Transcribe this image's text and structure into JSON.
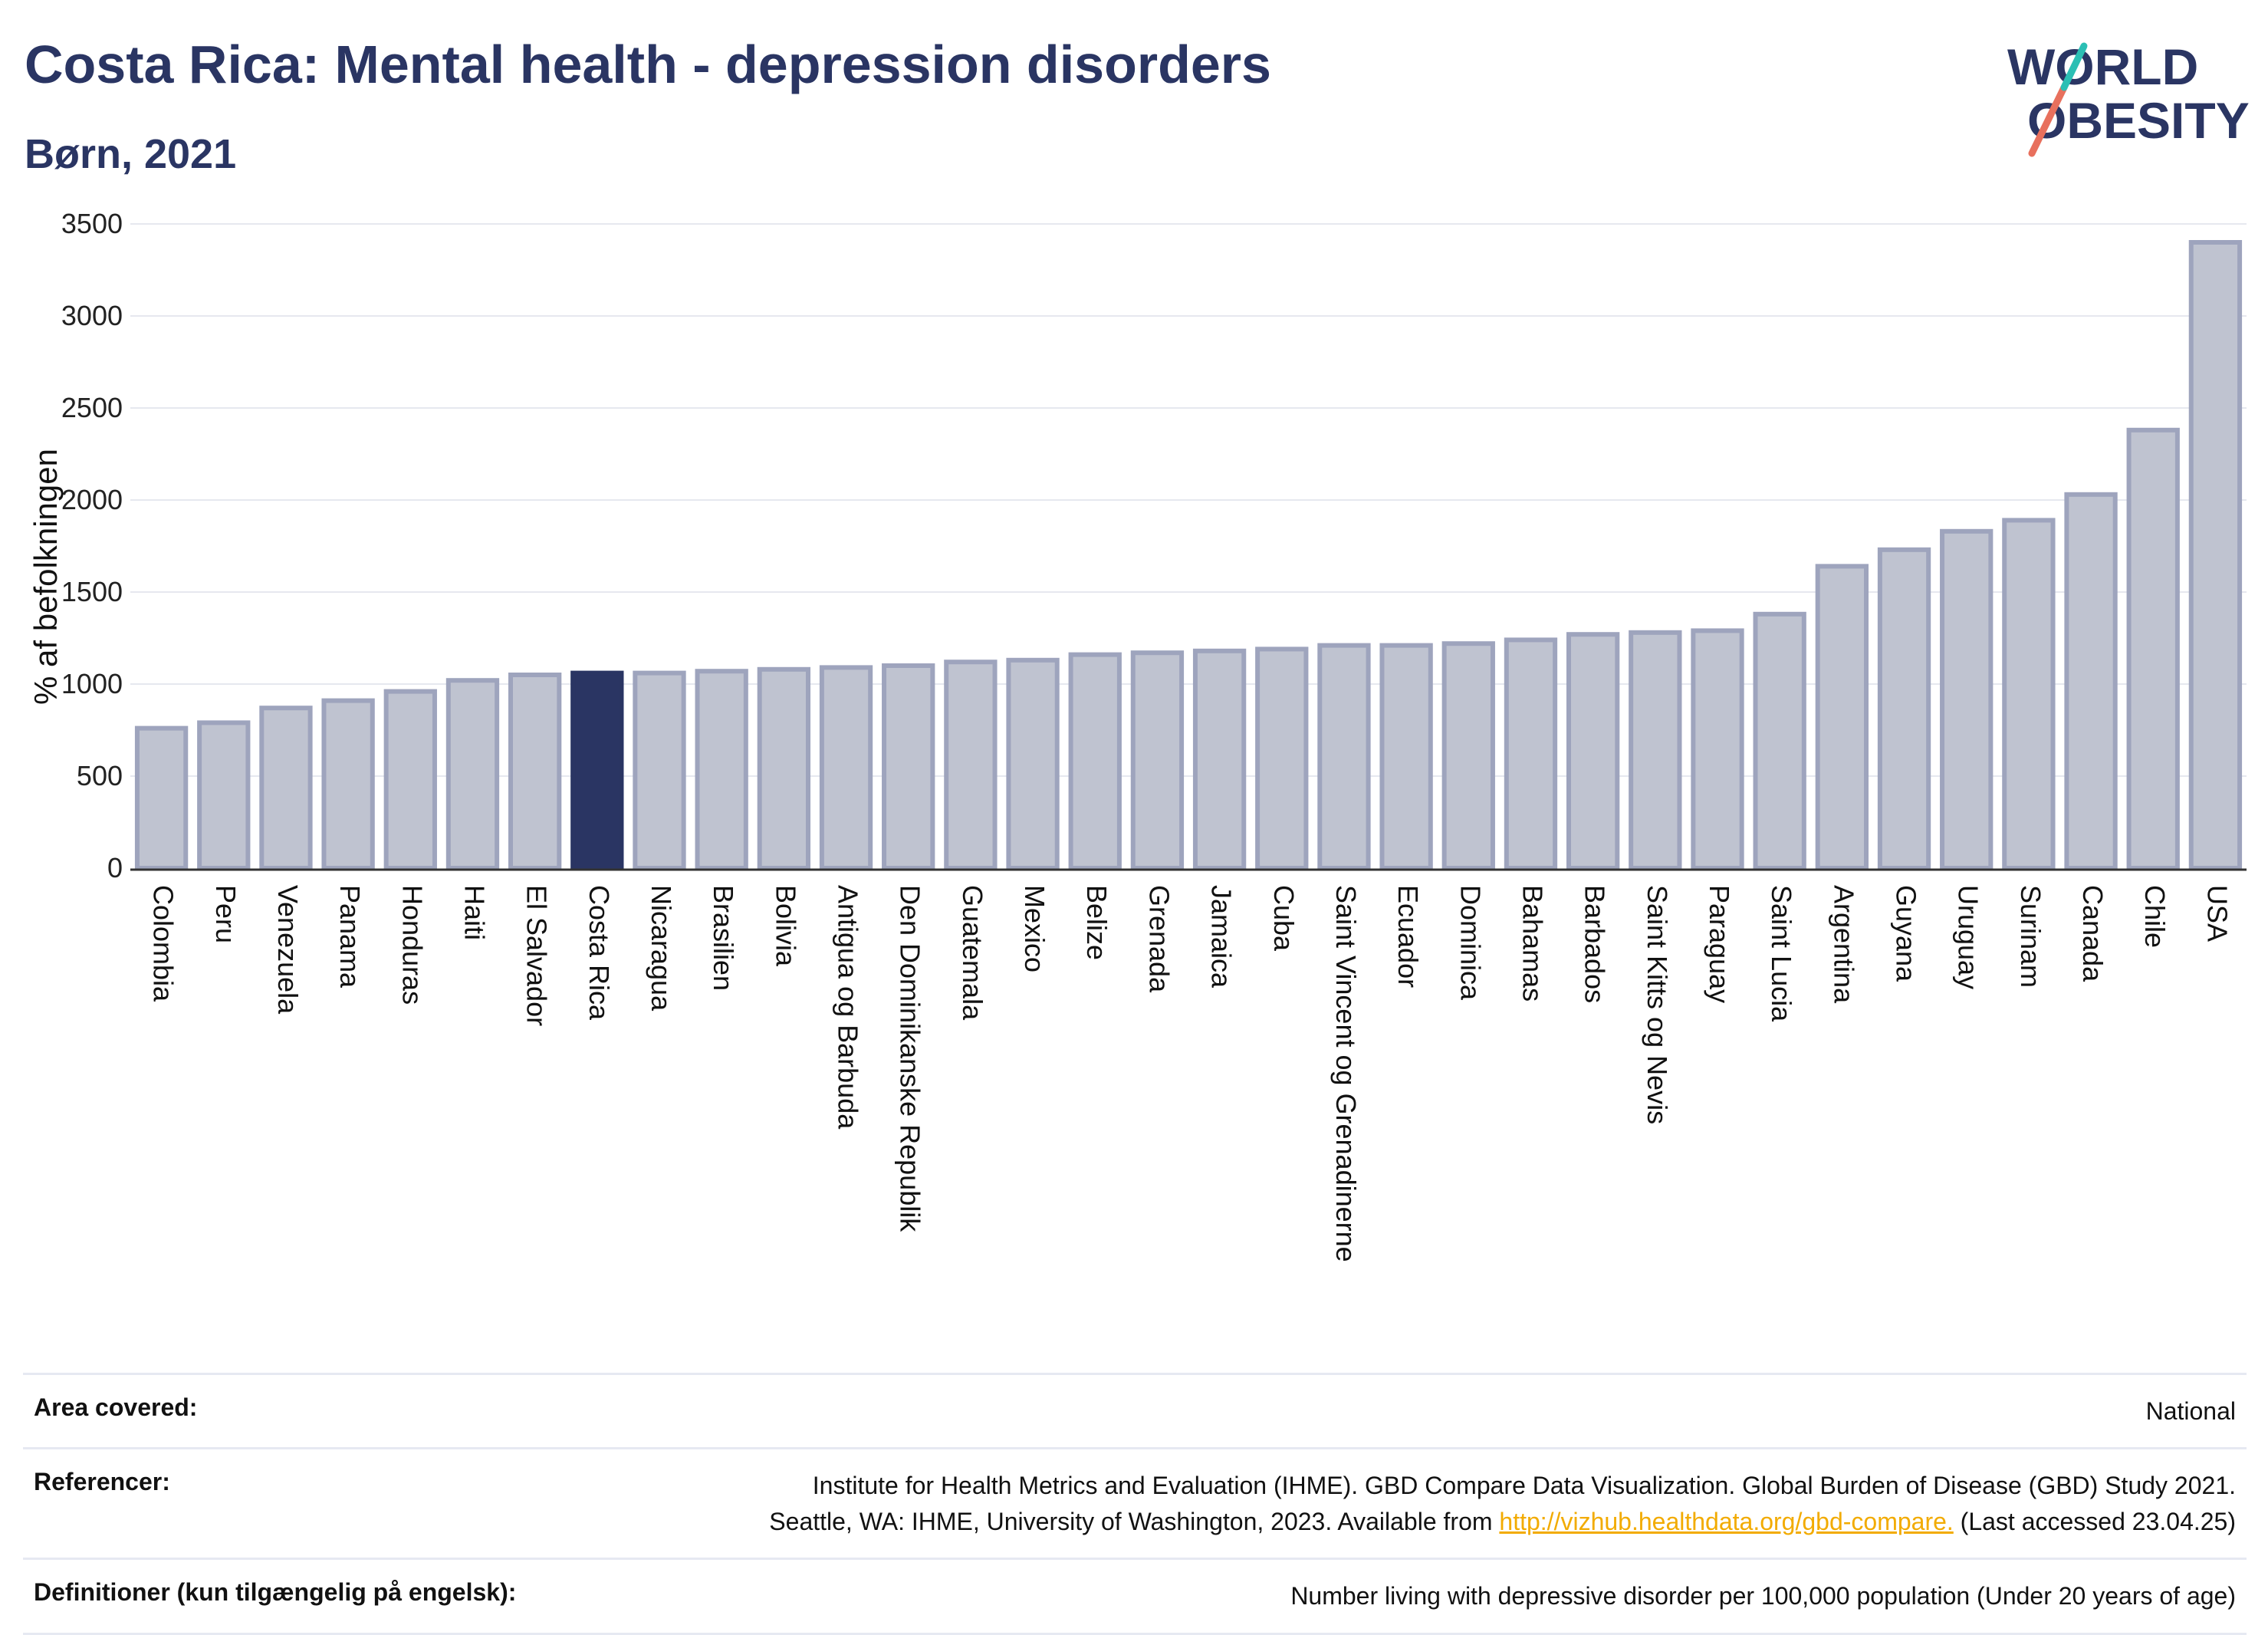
{
  "header": {
    "title": "Costa Rica: Mental health - depression disorders",
    "subtitle": "Børn, 2021"
  },
  "logo": {
    "line1": "WORLD",
    "line2": "OBESITY",
    "colors": {
      "text": "#2a3563",
      "slash_red": "#e8705d",
      "slash_teal": "#2bbfb4"
    }
  },
  "chart_data": {
    "type": "bar",
    "title": "Costa Rica: Mental health - depression disorders",
    "subtitle": "Børn, 2021",
    "ylabel": "% af befolkningen",
    "xlabel": "",
    "ylim": [
      0,
      3500
    ],
    "yticks": [
      0,
      500,
      1000,
      1500,
      2000,
      2500,
      3000,
      3500
    ],
    "grid": true,
    "highlight": "Costa Rica",
    "colors": {
      "bar": "#bfc3d0",
      "bar_edge": "#9ea4bd",
      "highlight": "#2a3563",
      "grid": "#e6e8ef",
      "axis": "#333333"
    },
    "categories": [
      "Colombia",
      "Peru",
      "Venezuela",
      "Panama",
      "Honduras",
      "Haiti",
      "El Salvador",
      "Costa Rica",
      "Nicaragua",
      "Brasilien",
      "Bolivia",
      "Antigua og Barbuda",
      "Den Dominikanske Republik",
      "Guatemala",
      "Mexico",
      "Belize",
      "Grenada",
      "Jamaica",
      "Cuba",
      "Saint Vincent og Grenadinerne",
      "Ecuador",
      "Dominica",
      "Bahamas",
      "Barbados",
      "Saint Kitts og Nevis",
      "Paraguay",
      "Saint Lucia",
      "Argentina",
      "Guyana",
      "Uruguay",
      "Surinam",
      "Canada",
      "Chile",
      "USA"
    ],
    "values": [
      760,
      790,
      870,
      910,
      960,
      1020,
      1050,
      1060,
      1060,
      1070,
      1080,
      1090,
      1100,
      1120,
      1130,
      1160,
      1170,
      1180,
      1190,
      1210,
      1210,
      1220,
      1240,
      1270,
      1280,
      1290,
      1380,
      1640,
      1730,
      1830,
      1890,
      2030,
      2380,
      3400
    ]
  },
  "meta": [
    {
      "key": "Area covered:",
      "value": "National"
    },
    {
      "key": "Referencer:",
      "value_line1": "Institute for Health Metrics and Evaluation (IHME). GBD Compare Data Visualization. Global Burden of Disease (GBD) Study 2021.",
      "value_line2_prefix": "Seattle, WA: IHME, University of Washington, 2023. Available from ",
      "link": "http://vizhub.healthdata.org/gbd-compare.",
      "value_line2_suffix": " (Last accessed 23.04.25)"
    },
    {
      "key": "Definitioner (kun tilgængelig på engelsk):",
      "value": "Number living with depressive disorder per 100,000 population (Under 20 years of age)"
    }
  ]
}
